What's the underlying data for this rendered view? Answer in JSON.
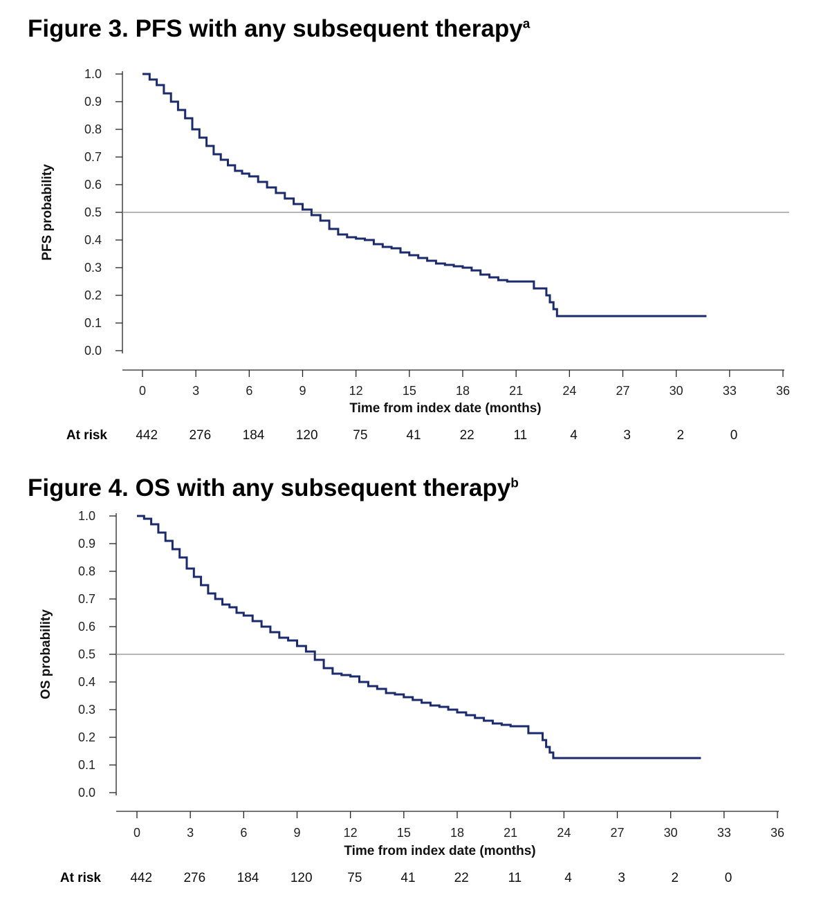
{
  "chart_data": [
    {
      "type": "line",
      "title": "Figure 3. PFS with any subsequent therapy",
      "title_sup": "a",
      "xlabel": "Time from index date (months)",
      "ylabel": "PFS probability",
      "xlim": [
        0,
        36
      ],
      "ylim": [
        0,
        1
      ],
      "x_ticks": [
        "0",
        "3",
        "6",
        "9",
        "12",
        "15",
        "18",
        "21",
        "24",
        "27",
        "30",
        "33",
        "36"
      ],
      "y_ticks": [
        "0.0",
        "0.1",
        "0.2",
        "0.3",
        "0.4",
        "0.5",
        "0.6",
        "0.7",
        "0.8",
        "0.9",
        "1.0"
      ],
      "reference_line_y": 0.5,
      "line_color": "#1a2a6c",
      "reference_color": "#9e9e9e",
      "grid": false,
      "series": [
        {
          "x": [
            0,
            0.4,
            0.8,
            1.2,
            1.6,
            2.0,
            2.4,
            2.8,
            3.2,
            3.6,
            4.0,
            4.4,
            4.8,
            5.2,
            5.6,
            6.0,
            6.5,
            7.0,
            7.5,
            8.0,
            8.5,
            9.0,
            9.5,
            10.0,
            10.5,
            11.0,
            11.5,
            12.0,
            12.5,
            13.0,
            13.5,
            14.0,
            14.5,
            15.0,
            15.5,
            16.0,
            16.5,
            17.0,
            17.5,
            18.0,
            18.5,
            19.0,
            19.5,
            20.0,
            20.5,
            21.0,
            21.5,
            22.0,
            22.5,
            22.7,
            22.9,
            23.1,
            23.3,
            23.6,
            24.0,
            26.0,
            28.0,
            30.0,
            31.7
          ],
          "y": [
            1.0,
            0.98,
            0.96,
            0.93,
            0.9,
            0.87,
            0.84,
            0.8,
            0.77,
            0.74,
            0.71,
            0.69,
            0.67,
            0.65,
            0.64,
            0.63,
            0.61,
            0.59,
            0.57,
            0.55,
            0.53,
            0.51,
            0.49,
            0.47,
            0.44,
            0.42,
            0.41,
            0.405,
            0.4,
            0.385,
            0.375,
            0.37,
            0.355,
            0.345,
            0.335,
            0.325,
            0.315,
            0.31,
            0.305,
            0.3,
            0.29,
            0.275,
            0.265,
            0.255,
            0.25,
            0.25,
            0.25,
            0.225,
            0.225,
            0.2,
            0.175,
            0.15,
            0.125,
            0.125,
            0.125,
            0.125,
            0.125,
            0.125,
            0.125
          ]
        }
      ],
      "at_risk_label": "At risk",
      "at_risk": [
        "442",
        "276",
        "184",
        "120",
        "75",
        "41",
        "22",
        "11",
        "4",
        "3",
        "2",
        "0"
      ]
    },
    {
      "type": "line",
      "title": "Figure 4. OS with any subsequent therapy",
      "title_sup": "b",
      "xlabel": "Time from index date (months)",
      "ylabel": "OS probability",
      "xlim": [
        0,
        36
      ],
      "ylim": [
        0,
        1
      ],
      "x_ticks": [
        "0",
        "3",
        "6",
        "9",
        "12",
        "15",
        "18",
        "21",
        "24",
        "27",
        "30",
        "33",
        "36"
      ],
      "y_ticks": [
        "0.0",
        "0.1",
        "0.2",
        "0.3",
        "0.4",
        "0.5",
        "0.6",
        "0.7",
        "0.8",
        "0.9",
        "1.0"
      ],
      "reference_line_y": 0.5,
      "line_color": "#1a2a6c",
      "reference_color": "#9e9e9e",
      "grid": false,
      "series": [
        {
          "x": [
            0,
            0.4,
            0.8,
            1.2,
            1.6,
            2.0,
            2.4,
            2.8,
            3.2,
            3.6,
            4.0,
            4.4,
            4.8,
            5.2,
            5.6,
            6.0,
            6.5,
            7.0,
            7.5,
            8.0,
            8.5,
            9.0,
            9.5,
            10.0,
            10.5,
            11.0,
            11.5,
            12.0,
            12.5,
            13.0,
            13.5,
            14.0,
            14.5,
            15.0,
            15.5,
            16.0,
            16.5,
            17.0,
            17.5,
            18.0,
            18.5,
            19.0,
            19.5,
            20.0,
            20.5,
            21.0,
            21.5,
            22.0,
            22.5,
            22.8,
            23.0,
            23.2,
            23.4,
            24.0,
            26.0,
            28.0,
            30.0,
            31.7
          ],
          "y": [
            1.0,
            0.99,
            0.97,
            0.94,
            0.91,
            0.88,
            0.85,
            0.81,
            0.78,
            0.75,
            0.72,
            0.7,
            0.68,
            0.67,
            0.65,
            0.64,
            0.62,
            0.6,
            0.58,
            0.56,
            0.55,
            0.53,
            0.51,
            0.48,
            0.45,
            0.43,
            0.425,
            0.42,
            0.4,
            0.385,
            0.375,
            0.36,
            0.355,
            0.345,
            0.335,
            0.325,
            0.315,
            0.31,
            0.3,
            0.29,
            0.28,
            0.27,
            0.26,
            0.25,
            0.245,
            0.24,
            0.24,
            0.215,
            0.215,
            0.19,
            0.165,
            0.145,
            0.125,
            0.125,
            0.125,
            0.125,
            0.125,
            0.125
          ]
        }
      ],
      "at_risk_label": "At risk",
      "at_risk": [
        "442",
        "276",
        "184",
        "120",
        "75",
        "41",
        "22",
        "11",
        "4",
        "3",
        "2",
        "0"
      ]
    }
  ]
}
